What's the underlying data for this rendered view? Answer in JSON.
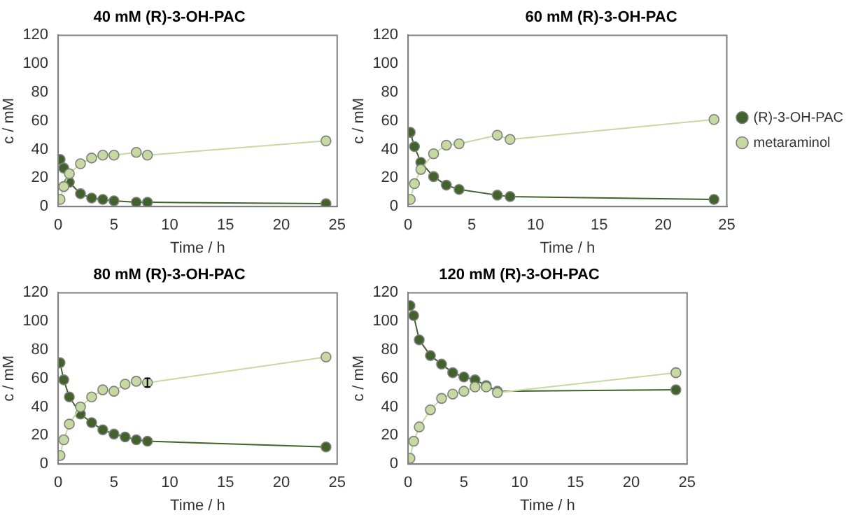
{
  "chart_data": [
    {
      "type": "line",
      "title": "40 mM (R)-3-OH-PAC",
      "xlabel": "Time / h",
      "ylabel": "c / mM",
      "xlim": [
        0,
        25
      ],
      "xticks": [
        0,
        5,
        10,
        15,
        20,
        25
      ],
      "ylim": [
        0,
        120
      ],
      "yticks": [
        0,
        20,
        40,
        60,
        80,
        100,
        120
      ],
      "grid": false,
      "legend": false,
      "marker": "circle",
      "line_style": "solid",
      "series": [
        {
          "color": "#41622a",
          "x": [
            0.17,
            0.5,
            1,
            2,
            3,
            4,
            5,
            7,
            8,
            24
          ],
          "values": [
            33,
            27,
            17,
            9,
            6,
            5,
            4,
            3,
            3,
            2
          ]
        },
        {
          "color": "#c5d9a0",
          "x": [
            0.17,
            0.5,
            1,
            2,
            3,
            4,
            5,
            7,
            8,
            24
          ],
          "values": [
            5,
            14,
            23,
            30,
            34,
            36,
            36,
            38,
            36,
            46
          ]
        }
      ]
    },
    {
      "type": "line",
      "title": "60 mM (R)-3-OH-PAC",
      "xlabel": "Time / h",
      "ylabel": "c / mM",
      "xlim": [
        0,
        25
      ],
      "xticks": [
        0,
        5,
        10,
        15,
        20,
        25
      ],
      "ylim": [
        0,
        120
      ],
      "yticks": [
        0,
        20,
        40,
        60,
        80,
        100,
        120
      ],
      "grid": false,
      "legend": "right",
      "marker": "circle",
      "line_style": "solid",
      "series": [
        {
          "name": "(R)-3-OH-PAC",
          "color": "#41622a",
          "x": [
            0.17,
            0.5,
            1,
            2,
            3,
            4,
            7,
            8,
            24
          ],
          "values": [
            52,
            42,
            31,
            21,
            15,
            12,
            8,
            7,
            5
          ]
        },
        {
          "name": "metaraminol",
          "color": "#c5d9a0",
          "x": [
            0.17,
            0.5,
            1,
            2,
            3,
            4,
            7,
            8,
            24
          ],
          "values": [
            5,
            16,
            26,
            37,
            43,
            44,
            50,
            47,
            61
          ]
        }
      ]
    },
    {
      "type": "line",
      "title": "80 mM (R)-3-OH-PAC",
      "xlabel": "Time / h",
      "ylabel": "c / mM",
      "xlim": [
        0,
        25
      ],
      "xticks": [
        0,
        5,
        10,
        15,
        20,
        25
      ],
      "ylim": [
        0,
        120
      ],
      "yticks": [
        0,
        20,
        40,
        60,
        80,
        100,
        120
      ],
      "grid": false,
      "legend": false,
      "marker": "circle",
      "line_style": "solid",
      "series": [
        {
          "color": "#41622a",
          "x": [
            0.17,
            0.5,
            1,
            2,
            3,
            4,
            5,
            6,
            7,
            8,
            24
          ],
          "values": [
            71,
            59,
            47,
            35,
            29,
            24,
            21,
            19,
            17,
            16,
            12
          ]
        },
        {
          "color": "#c5d9a0",
          "x": [
            0.17,
            0.5,
            1,
            2,
            3,
            4,
            5,
            6,
            7,
            8,
            24
          ],
          "values": [
            6,
            17,
            28,
            40,
            47,
            52,
            51,
            56,
            58,
            57,
            75
          ],
          "errors": [
            null,
            null,
            null,
            null,
            null,
            null,
            null,
            null,
            null,
            3,
            null
          ]
        }
      ]
    },
    {
      "type": "line",
      "title": "120 mM (R)-3-OH-PAC",
      "xlabel": "Time / h",
      "ylabel": "c / mM",
      "xlim": [
        0,
        25
      ],
      "xticks": [
        0,
        5,
        10,
        15,
        20,
        25
      ],
      "ylim": [
        0,
        120
      ],
      "yticks": [
        0,
        20,
        40,
        60,
        80,
        100,
        120
      ],
      "grid": false,
      "legend": false,
      "marker": "circle",
      "line_style": "solid",
      "series": [
        {
          "color": "#41622a",
          "x": [
            0.17,
            0.5,
            1,
            2,
            3,
            4,
            5,
            6,
            7,
            8,
            24
          ],
          "values": [
            111,
            104,
            87,
            76,
            70,
            64,
            61,
            59,
            55,
            51,
            52
          ]
        },
        {
          "color": "#c5d9a0",
          "x": [
            0.17,
            0.5,
            1,
            2,
            3,
            4,
            5,
            6,
            7,
            8,
            24
          ],
          "values": [
            4,
            16,
            26,
            38,
            46,
            49,
            51,
            54,
            54,
            50,
            64
          ]
        }
      ]
    }
  ]
}
